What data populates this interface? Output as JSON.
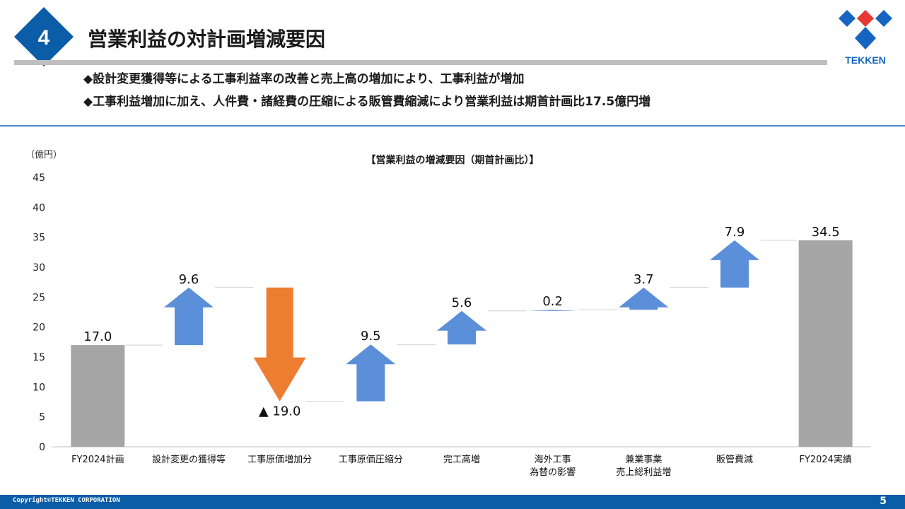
{
  "slide": {
    "number": "4",
    "title": "営業利益の対計画増減要因",
    "bullets": [
      "◆設計変更獲得等による工事利益率の改善と売上高の増加により、工事利益が増加",
      "◆工事利益増加に加え、人件費・諸経費の圧縮による販管費縮減により営業利益は期首計画比17.5億円増"
    ],
    "logo_text": "TEKKEN",
    "copyright": "Copyright©TEKKEN CORPORATION",
    "page": "5"
  },
  "colors": {
    "badge": "#0a5da6",
    "increase": "#5b8fd9",
    "decrease": "#ed7d31",
    "total": "#a6a6a6",
    "logo_blue": "#1565c0",
    "logo_red": "#e53935"
  },
  "chart_data": {
    "type": "bar",
    "subtype": "waterfall",
    "title": "【営業利益の増減要因（期首計画比）】",
    "unit_label": "（億円）",
    "ylim": [
      0,
      45
    ],
    "yticks": [
      "0",
      "5",
      "10",
      "15",
      "20",
      "25",
      "30",
      "35",
      "40",
      "45"
    ],
    "categories": [
      [
        "FY2024計画"
      ],
      [
        "設計変更の獲得等"
      ],
      [
        "工事原価増加分"
      ],
      [
        "工事原価圧縮分"
      ],
      [
        "完工高増"
      ],
      [
        "海外工事",
        "為替の影響"
      ],
      [
        "兼業事業",
        "売上総利益増"
      ],
      [
        "販管費減"
      ],
      [
        "FY2024実績"
      ]
    ],
    "steps": [
      {
        "kind": "total",
        "start": 0,
        "end": 17.0,
        "label": "17.0"
      },
      {
        "kind": "increase",
        "start": 17.0,
        "end": 26.6,
        "label": "9.6"
      },
      {
        "kind": "decrease",
        "start": 26.6,
        "end": 7.6,
        "label": "▲ 19.0"
      },
      {
        "kind": "increase",
        "start": 7.6,
        "end": 17.1,
        "label": "9.5"
      },
      {
        "kind": "increase",
        "start": 17.1,
        "end": 22.7,
        "label": "5.6"
      },
      {
        "kind": "increase",
        "start": 22.7,
        "end": 22.9,
        "label": "0.2"
      },
      {
        "kind": "increase",
        "start": 22.9,
        "end": 26.6,
        "label": "3.7"
      },
      {
        "kind": "increase",
        "start": 26.6,
        "end": 34.5,
        "label": "7.9"
      },
      {
        "kind": "total",
        "start": 0,
        "end": 34.5,
        "label": "34.5"
      }
    ]
  }
}
